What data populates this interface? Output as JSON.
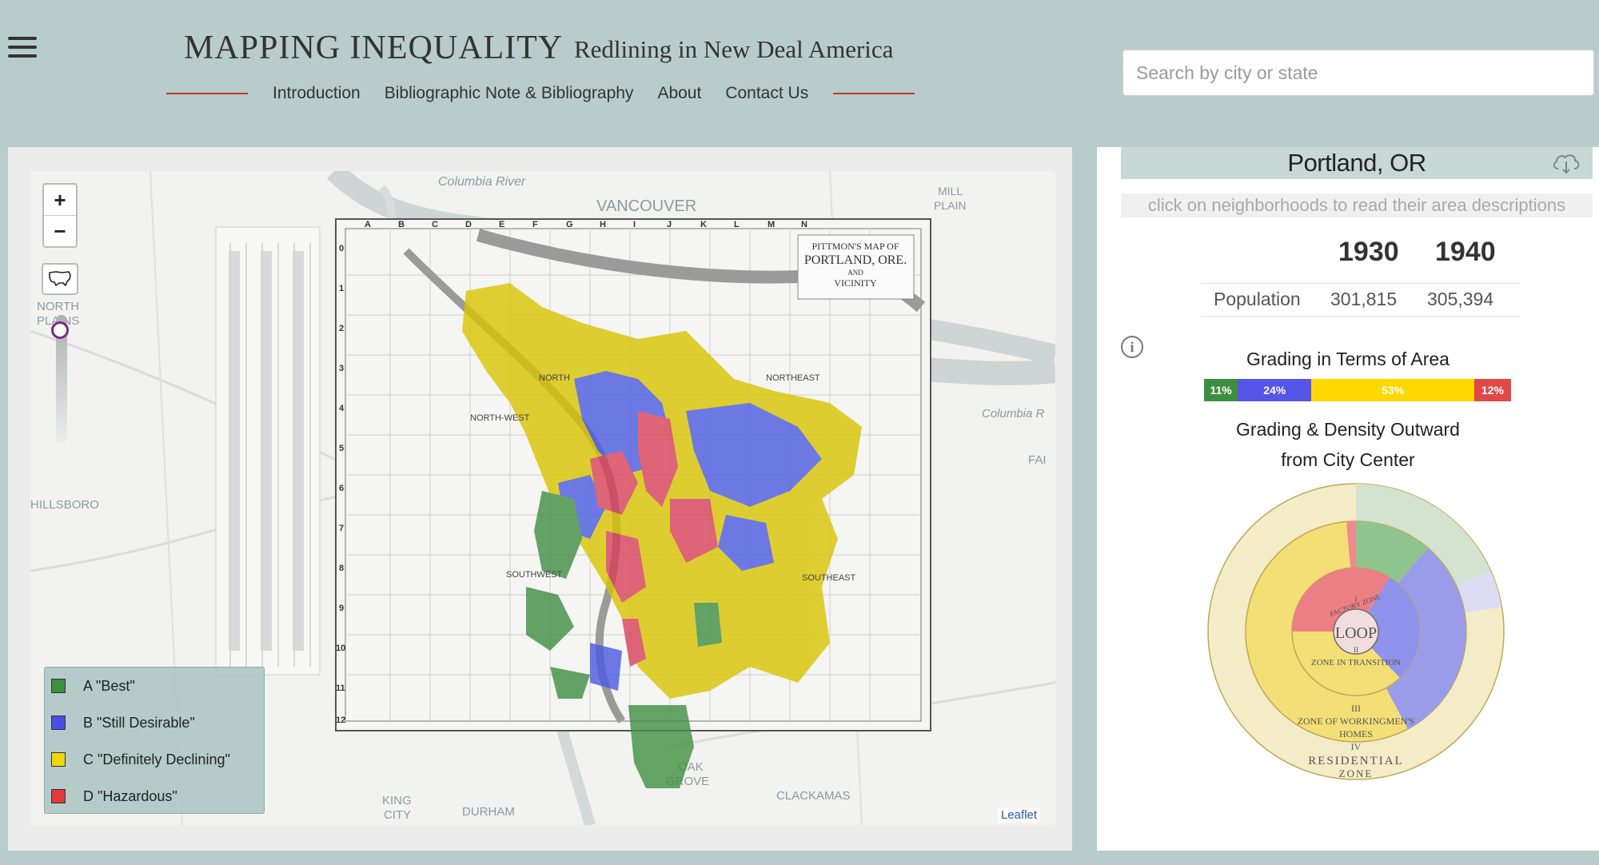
{
  "header": {
    "title": "MAPPING INEQUALITY",
    "subtitle": "Redlining in New Deal America",
    "nav": [
      "Introduction",
      "Bibliographic Note & Bibliography",
      "About",
      "Contact Us"
    ],
    "search_placeholder": "Search by city or state"
  },
  "map": {
    "zoom_in": "+",
    "zoom_out": "−",
    "place_labels": {
      "columbia_river_north": "Columbia River",
      "vancouver": "VANCOUVER",
      "mill_plain_1": "MILL",
      "mill_plain_2": "PLAIN",
      "columbia_river_east": "Columbia R",
      "fai": "FAI",
      "north_plains_1": "NORTH",
      "north_plains_2": "PLAINS",
      "hillsboro": "HILLSBORO",
      "oak_grove_1": "OAK",
      "oak_grove_2": "GROVE",
      "king_city_1": "KING",
      "king_city_2": "CITY",
      "durham": "DURHAM",
      "clackamas": "CLACKAMAS"
    },
    "scan": {
      "title_line1": "PITTMON'S MAP OF",
      "title_line2": "PORTLAND, ORE.",
      "title_line3": "AND",
      "title_line4": "VICINITY",
      "col_letters": [
        "A",
        "B",
        "C",
        "D",
        "E",
        "F",
        "G",
        "H",
        "I",
        "J",
        "K",
        "L",
        "M",
        "N"
      ],
      "row_numbers": [
        "0",
        "1",
        "2",
        "3",
        "4",
        "5",
        "6",
        "7",
        "8",
        "9",
        "10",
        "11",
        "12"
      ],
      "quadrants": [
        "NORTH",
        "NORTHEAST",
        "NORTH-WEST",
        "SOUTHWEST",
        "SOUTHEAST"
      ]
    },
    "legend": [
      {
        "label": "A \"Best\"",
        "color": "#3e8e41"
      },
      {
        "label": "B \"Still Desirable\"",
        "color": "#4a4ee6"
      },
      {
        "label": "C \"Definitely Declining\"",
        "color": "#f2d600"
      },
      {
        "label": "D \"Hazardous\"",
        "color": "#e03a3a"
      }
    ],
    "attribution": "Leaflet"
  },
  "city_panel": {
    "city": "Portland, OR",
    "hint": "click on neighborhoods to read their area descriptions",
    "years": [
      "1930",
      "1940"
    ],
    "population_label": "Population",
    "population": [
      "301,815",
      "305,394"
    ],
    "grading_area_title": "Grading in Terms of Area",
    "grading_area": [
      {
        "grade": "A",
        "percent": 11,
        "label": "11%",
        "color": "#3e8e41"
      },
      {
        "grade": "B",
        "percent": 24,
        "label": "24%",
        "color": "#5555e8"
      },
      {
        "grade": "C",
        "percent": 53,
        "label": "53%",
        "color": "#ffd800"
      },
      {
        "grade": "D",
        "percent": 12,
        "label": "12%",
        "color": "#e24848"
      }
    ],
    "density_title_line1": "Grading & Density Outward",
    "density_title_line2": "from City Center",
    "burgess_labels": {
      "loop": "LOOP",
      "factory_zone": "FACTORY ZONE",
      "zone_transition": "ZONE IN TRANSITION",
      "numeral_iii": "III",
      "workingmens_1": "ZONE OF WORKINGMEN'S",
      "workingmens_2": "HOMES",
      "numeral_iv": "IV",
      "residential_1": "RESIDENTIAL",
      "residential_2": "ZONE",
      "numeral_i": "I",
      "numeral_ii": "II"
    }
  },
  "icons": {
    "menu": "hamburger-icon",
    "zoom_in": "plus-icon",
    "zoom_out": "minus-icon",
    "us_outline": "us-map-icon",
    "download": "cloud-download-icon",
    "info": "info-icon"
  }
}
